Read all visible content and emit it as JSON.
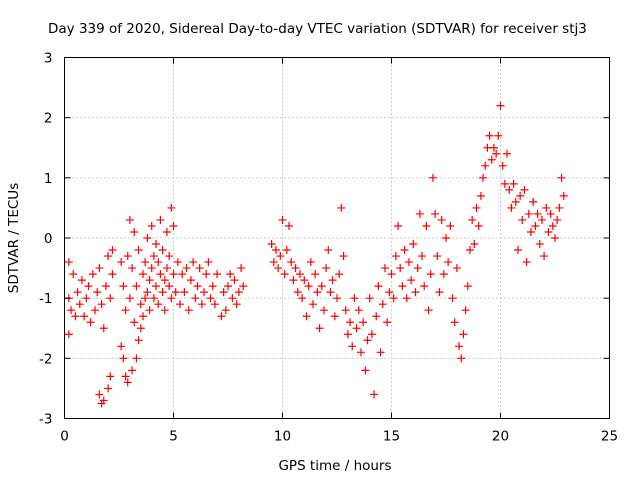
{
  "chart_data": {
    "type": "scatter",
    "title": "Day 339 of 2020, Sidereal Day-to-day VTEC variation (SDTVAR) for receiver stj3",
    "xlabel": "GPS time / hours",
    "ylabel": "SDTVAR / TECUs",
    "xlim": [
      0,
      25
    ],
    "ylim": [
      -3,
      3
    ],
    "xticks": [
      0,
      5,
      10,
      15,
      20,
      25
    ],
    "yticks": [
      -3,
      -2,
      -1,
      0,
      1,
      2,
      3
    ],
    "grid": true,
    "marker": "+",
    "series": [
      {
        "name": "SDTVAR",
        "color": "#ff0000",
        "points": [
          [
            0.2,
            -0.4
          ],
          [
            0.2,
            -1.0
          ],
          [
            0.2,
            -1.6
          ],
          [
            0.3,
            -1.2
          ],
          [
            0.4,
            -0.6
          ],
          [
            0.5,
            -1.3
          ],
          [
            0.6,
            -0.9
          ],
          [
            0.7,
            -1.1
          ],
          [
            0.8,
            -0.7
          ],
          [
            0.9,
            -1.3
          ],
          [
            1.0,
            -1.0
          ],
          [
            1.1,
            -0.8
          ],
          [
            1.2,
            -1.4
          ],
          [
            1.3,
            -0.6
          ],
          [
            1.4,
            -1.2
          ],
          [
            1.5,
            -0.9
          ],
          [
            1.6,
            -0.5
          ],
          [
            1.7,
            -1.1
          ],
          [
            1.8,
            -1.5
          ],
          [
            1.9,
            -0.8
          ],
          [
            2.0,
            -0.3
          ],
          [
            2.1,
            -1.0
          ],
          [
            2.2,
            -0.2
          ],
          [
            2.2,
            -0.6
          ],
          [
            1.6,
            -2.6
          ],
          [
            1.7,
            -2.75
          ],
          [
            1.8,
            -2.7
          ],
          [
            2.0,
            -2.5
          ],
          [
            2.1,
            -2.3
          ],
          [
            2.6,
            -0.4
          ],
          [
            2.6,
            -1.8
          ],
          [
            2.7,
            -0.8
          ],
          [
            2.7,
            -2.0
          ],
          [
            2.8,
            -1.2
          ],
          [
            2.8,
            -2.3
          ],
          [
            2.9,
            -0.3
          ],
          [
            2.9,
            -2.4
          ],
          [
            3.0,
            -1.0
          ],
          [
            3.0,
            0.3
          ],
          [
            3.1,
            -0.5
          ],
          [
            3.1,
            -2.2
          ],
          [
            3.2,
            -1.4
          ],
          [
            3.2,
            0.1
          ],
          [
            3.3,
            -2.0
          ],
          [
            3.3,
            -0.8
          ],
          [
            3.4,
            -1.7
          ],
          [
            3.4,
            -0.2
          ],
          [
            3.5,
            -1.5
          ],
          [
            3.5,
            -1.1
          ],
          [
            3.6,
            -1.3
          ],
          [
            3.6,
            -0.6
          ],
          [
            3.7,
            -1.0
          ],
          [
            3.7,
            -0.4
          ],
          [
            3.8,
            -0.9
          ],
          [
            3.8,
            0.0
          ],
          [
            3.9,
            -0.7
          ],
          [
            3.9,
            -1.2
          ],
          [
            4.0,
            -0.5
          ],
          [
            4.0,
            0.2
          ],
          [
            4.1,
            -0.3
          ],
          [
            4.1,
            -1.0
          ],
          [
            4.2,
            -0.8
          ],
          [
            4.2,
            -0.1
          ],
          [
            4.3,
            -1.1
          ],
          [
            4.3,
            -0.4
          ],
          [
            4.4,
            -0.6
          ],
          [
            4.4,
            0.3
          ],
          [
            4.5,
            -0.9
          ],
          [
            4.5,
            -0.2
          ],
          [
            4.6,
            -0.7
          ],
          [
            4.6,
            -1.2
          ],
          [
            4.7,
            0.1
          ],
          [
            4.7,
            -0.5
          ],
          [
            4.8,
            -0.8
          ],
          [
            4.8,
            -0.3
          ],
          [
            4.9,
            0.5
          ],
          [
            4.9,
            -1.0
          ],
          [
            5.0,
            -0.6
          ],
          [
            5.0,
            0.2
          ],
          [
            5.1,
            -0.9
          ],
          [
            5.2,
            -0.4
          ],
          [
            5.3,
            -1.1
          ],
          [
            5.4,
            -0.6
          ],
          [
            5.5,
            -0.9
          ],
          [
            5.6,
            -0.5
          ],
          [
            5.7,
            -1.2
          ],
          [
            5.8,
            -0.7
          ],
          [
            5.9,
            -0.4
          ],
          [
            6.0,
            -1.0
          ],
          [
            6.1,
            -0.8
          ],
          [
            6.2,
            -0.5
          ],
          [
            6.3,
            -1.1
          ],
          [
            6.4,
            -0.9
          ],
          [
            6.5,
            -0.6
          ],
          [
            6.6,
            -0.4
          ],
          [
            6.7,
            -1.0
          ],
          [
            6.8,
            -0.8
          ],
          [
            6.9,
            -1.1
          ],
          [
            7.0,
            -0.6
          ],
          [
            7.2,
            -1.3
          ],
          [
            7.3,
            -0.9
          ],
          [
            7.4,
            -1.2
          ],
          [
            7.5,
            -0.8
          ],
          [
            7.6,
            -0.6
          ],
          [
            7.7,
            -1.0
          ],
          [
            7.8,
            -0.7
          ],
          [
            7.9,
            -1.1
          ],
          [
            8.0,
            -0.9
          ],
          [
            8.1,
            -0.5
          ],
          [
            8.2,
            -0.8
          ],
          [
            9.5,
            -0.1
          ],
          [
            9.6,
            -0.4
          ],
          [
            9.7,
            -0.2
          ],
          [
            9.8,
            -0.5
          ],
          [
            9.9,
            -0.3
          ],
          [
            10.0,
            0.3
          ],
          [
            10.1,
            -0.6
          ],
          [
            10.2,
            -0.2
          ],
          [
            10.3,
            0.2
          ],
          [
            10.4,
            -0.4
          ],
          [
            10.5,
            -0.7
          ],
          [
            10.6,
            -0.5
          ],
          [
            10.7,
            -0.9
          ],
          [
            10.8,
            -0.6
          ],
          [
            10.9,
            -1.0
          ],
          [
            11.0,
            -0.7
          ],
          [
            11.1,
            -1.3
          ],
          [
            11.2,
            -0.8
          ],
          [
            11.3,
            -0.4
          ],
          [
            11.4,
            -1.1
          ],
          [
            11.5,
            -0.6
          ],
          [
            11.6,
            -0.9
          ],
          [
            11.7,
            -1.5
          ],
          [
            11.8,
            -0.8
          ],
          [
            11.9,
            -1.2
          ],
          [
            12.0,
            -0.5
          ],
          [
            12.1,
            -0.2
          ],
          [
            12.2,
            -0.9
          ],
          [
            12.3,
            -0.7
          ],
          [
            12.4,
            -1.3
          ],
          [
            12.5,
            -1.0
          ],
          [
            12.6,
            -0.6
          ],
          [
            12.7,
            0.5
          ],
          [
            12.8,
            -0.3
          ],
          [
            12.9,
            -1.2
          ],
          [
            13.0,
            -1.6
          ],
          [
            13.1,
            -1.4
          ],
          [
            13.2,
            -1.8
          ],
          [
            13.3,
            -1.0
          ],
          [
            13.4,
            -1.5
          ],
          [
            13.5,
            -1.2
          ],
          [
            13.6,
            -1.9
          ],
          [
            13.7,
            -1.4
          ],
          [
            13.8,
            -2.2
          ],
          [
            13.9,
            -1.7
          ],
          [
            14.0,
            -1.0
          ],
          [
            14.1,
            -1.6
          ],
          [
            14.2,
            -2.6
          ],
          [
            14.3,
            -1.3
          ],
          [
            14.4,
            -0.8
          ],
          [
            14.5,
            -1.9
          ],
          [
            14.6,
            -1.1
          ],
          [
            14.7,
            -0.5
          ],
          [
            14.8,
            -1.4
          ],
          [
            14.9,
            -0.9
          ],
          [
            15.0,
            -0.6
          ],
          [
            15.1,
            -1.0
          ],
          [
            15.2,
            -0.3
          ],
          [
            15.3,
            0.2
          ],
          [
            15.4,
            -0.5
          ],
          [
            15.5,
            -0.8
          ],
          [
            15.6,
            -0.2
          ],
          [
            15.7,
            -1.0
          ],
          [
            15.8,
            -0.4
          ],
          [
            15.9,
            -0.7
          ],
          [
            16.0,
            -0.1
          ],
          [
            16.1,
            -0.9
          ],
          [
            16.2,
            -0.5
          ],
          [
            16.3,
            0.4
          ],
          [
            16.4,
            -0.3
          ],
          [
            16.5,
            -0.8
          ],
          [
            16.6,
            0.2
          ],
          [
            16.7,
            -1.2
          ],
          [
            16.8,
            -0.6
          ],
          [
            16.9,
            1.0
          ],
          [
            17.0,
            0.4
          ],
          [
            17.1,
            -0.3
          ],
          [
            17.2,
            -0.9
          ],
          [
            17.3,
            0.3
          ],
          [
            17.4,
            -0.6
          ],
          [
            17.5,
            0.0
          ],
          [
            17.6,
            -0.4
          ],
          [
            17.7,
            0.2
          ],
          [
            17.8,
            -1.0
          ],
          [
            17.9,
            -1.4
          ],
          [
            18.0,
            -0.5
          ],
          [
            18.1,
            -1.8
          ],
          [
            18.2,
            -2.0
          ],
          [
            18.3,
            -1.6
          ],
          [
            18.4,
            -1.2
          ],
          [
            18.5,
            -0.8
          ],
          [
            18.6,
            -0.2
          ],
          [
            18.7,
            0.3
          ],
          [
            18.8,
            -0.1
          ],
          [
            18.9,
            0.5
          ],
          [
            19.0,
            0.2
          ],
          [
            19.1,
            0.7
          ],
          [
            19.2,
            1.0
          ],
          [
            19.3,
            1.2
          ],
          [
            19.4,
            1.5
          ],
          [
            19.5,
            1.7
          ],
          [
            19.6,
            1.3
          ],
          [
            19.7,
            1.5
          ],
          [
            19.8,
            1.4
          ],
          [
            19.9,
            1.7
          ],
          [
            20.0,
            2.2
          ],
          [
            20.1,
            1.2
          ],
          [
            20.2,
            0.9
          ],
          [
            20.3,
            1.4
          ],
          [
            20.4,
            0.8
          ],
          [
            20.5,
            0.5
          ],
          [
            20.6,
            0.9
          ],
          [
            20.7,
            0.6
          ],
          [
            20.8,
            -0.2
          ],
          [
            20.9,
            0.7
          ],
          [
            21.0,
            0.3
          ],
          [
            21.1,
            0.8
          ],
          [
            21.2,
            -0.4
          ],
          [
            21.3,
            0.4
          ],
          [
            21.4,
            0.1
          ],
          [
            21.5,
            0.6
          ],
          [
            21.6,
            0.2
          ],
          [
            21.7,
            0.4
          ],
          [
            21.8,
            -0.1
          ],
          [
            21.9,
            0.3
          ],
          [
            22.0,
            -0.3
          ],
          [
            22.1,
            0.5
          ],
          [
            22.2,
            0.1
          ],
          [
            22.3,
            0.4
          ],
          [
            22.4,
            0.2
          ],
          [
            22.5,
            0.0
          ],
          [
            22.6,
            0.3
          ],
          [
            22.7,
            0.5
          ],
          [
            22.8,
            1.0
          ],
          [
            22.9,
            0.7
          ]
        ]
      }
    ]
  }
}
